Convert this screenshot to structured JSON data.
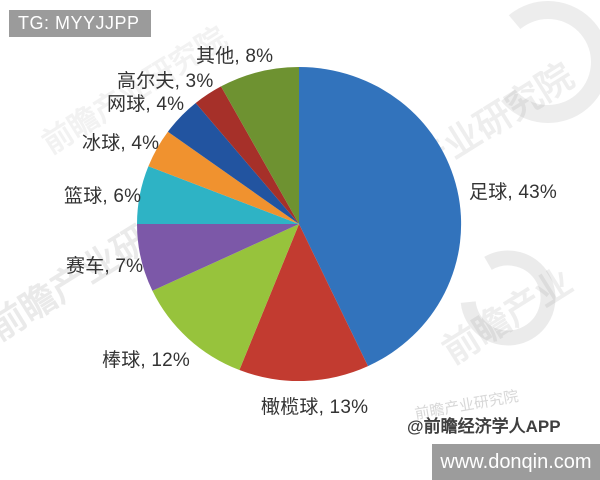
{
  "banner": {
    "text": "TG: MYYJJPP"
  },
  "chart_data": {
    "type": "pie",
    "title": "",
    "legend": "none",
    "direction": "clockwise",
    "start_angle_deg": 0,
    "label_format": "{label}, {value}%",
    "series": [
      {
        "label": "足球",
        "value": 43,
        "color": "#3273BC"
      },
      {
        "label": "橄榄球",
        "value": 13,
        "color": "#C23B30"
      },
      {
        "label": "棒球",
        "value": 12,
        "color": "#97C33C"
      },
      {
        "label": "赛车",
        "value": 7,
        "color": "#7C58A8"
      },
      {
        "label": "篮球",
        "value": 6,
        "color": "#2EB3C5"
      },
      {
        "label": "冰球",
        "value": 4,
        "color": "#F0922F"
      },
      {
        "label": "网球",
        "value": 4,
        "color": "#2254A0"
      },
      {
        "label": "高尔夫",
        "value": 3,
        "color": "#A63029"
      },
      {
        "label": "其他",
        "value": 8,
        "color": "#6E9231"
      }
    ]
  },
  "watermarks": {
    "brand_text": "前瞻产业研究院",
    "brand_text_b": "产业研究院",
    "brand_text_c": "前瞻产业",
    "logo": "qianzhan-ring-logo"
  },
  "attribution": {
    "text": "@前瞻经济学人APP"
  },
  "footer": {
    "website": "www.donqin.com"
  }
}
